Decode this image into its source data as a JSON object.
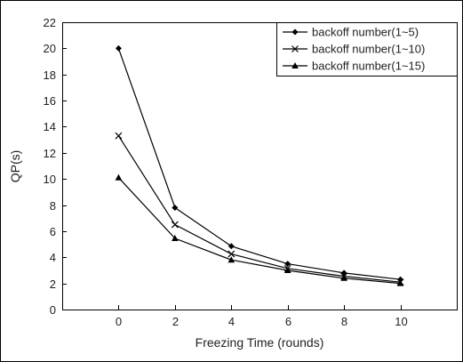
{
  "chart_data": {
    "type": "line",
    "title": "",
    "xlabel": "Freezing Time (rounds)",
    "ylabel": "QP(s)",
    "x": [
      0,
      2,
      4,
      6,
      8,
      10
    ],
    "xlim": [
      -2,
      12
    ],
    "ylim": [
      0,
      22
    ],
    "xticks": [
      "0",
      "2",
      "4",
      "6",
      "8",
      "10"
    ],
    "yticks": [
      "0",
      "2",
      "4",
      "6",
      "8",
      "10",
      "12",
      "14",
      "16",
      "18",
      "20",
      "22"
    ],
    "grid": false,
    "legend_position": "top-right",
    "series": [
      {
        "name": "backoff number(1~5)",
        "marker": "diamond",
        "values": [
          20.0,
          7.8,
          4.85,
          3.5,
          2.8,
          2.3
        ]
      },
      {
        "name": "backoff number(1~10)",
        "marker": "x",
        "values": [
          13.3,
          6.5,
          4.25,
          3.15,
          2.55,
          2.1
        ]
      },
      {
        "name": "backoff number(1~15)",
        "marker": "triangle",
        "values": [
          10.1,
          5.45,
          3.8,
          3.0,
          2.4,
          2.0
        ]
      }
    ]
  }
}
